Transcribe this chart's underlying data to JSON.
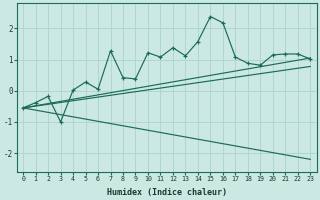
{
  "xlabel": "Humidex (Indice chaleur)",
  "bg_color": "#cce8e2",
  "grid_color": "#aad4cc",
  "line_color": "#1a6b5a",
  "x_data": [
    0,
    1,
    2,
    3,
    4,
    5,
    6,
    7,
    8,
    9,
    10,
    11,
    12,
    13,
    14,
    15,
    16,
    17,
    18,
    19,
    20,
    21,
    22,
    23
  ],
  "y_main": [
    -0.55,
    -0.38,
    -0.18,
    -1.0,
    0.02,
    0.28,
    0.05,
    1.28,
    0.42,
    0.38,
    1.22,
    1.08,
    1.38,
    1.12,
    1.58,
    2.38,
    2.18,
    1.08,
    0.88,
    0.82,
    1.15,
    1.18,
    1.18,
    1.02
  ],
  "line_bottom": {
    "x0": 0,
    "y0": -0.55,
    "x1": 23,
    "y1": -2.2
  },
  "line_mid": {
    "x0": 0,
    "y0": -0.55,
    "x1": 23,
    "y1": 0.78
  },
  "line_top": {
    "x0": 0,
    "y0": -0.55,
    "x1": 23,
    "y1": 1.05
  },
  "ylim": [
    -2.6,
    2.8
  ],
  "xlim": [
    -0.5,
    23.5
  ],
  "yticks": [
    -2,
    -1,
    0,
    1,
    2
  ],
  "xticks": [
    0,
    1,
    2,
    3,
    4,
    5,
    6,
    7,
    8,
    9,
    10,
    11,
    12,
    13,
    14,
    15,
    16,
    17,
    18,
    19,
    20,
    21,
    22,
    23
  ]
}
